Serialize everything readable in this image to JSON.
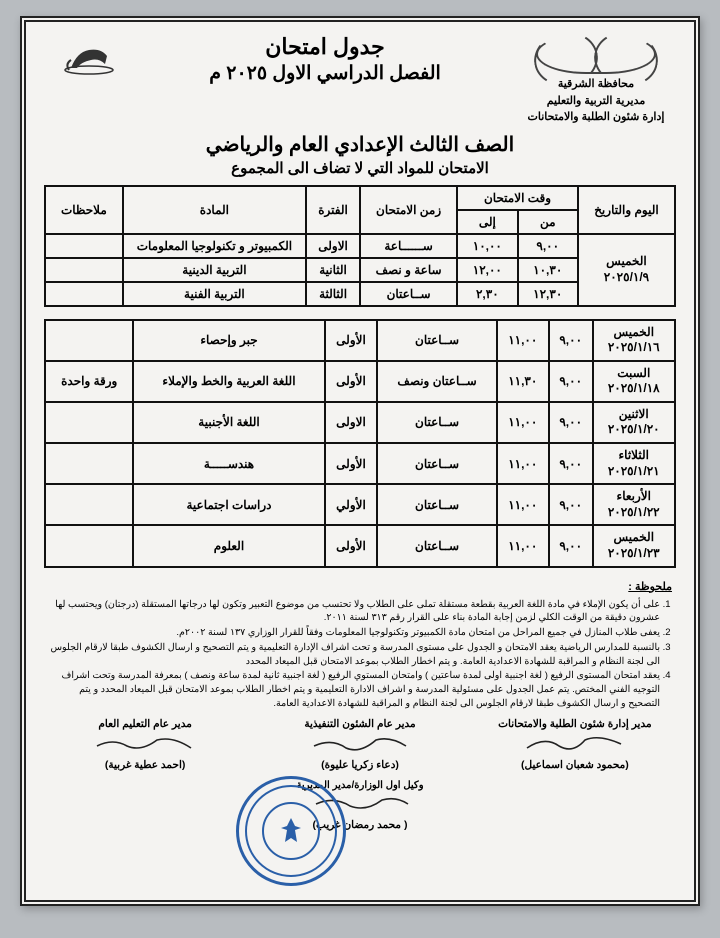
{
  "governorate": "محافظة الشرقية",
  "directorate": "مديرية التربية والتعليم",
  "department": "إدارة شئون الطلبة والامتحانات",
  "main_title": "جدول امتحان",
  "semester_line": "الفصل الدراسي الاول ٢٠٢٥ م",
  "grade_title": "الصف الثالث الإعدادي العام والرياضي",
  "sub_title": "الامتحان للمواد التي لا تضاف الى المجموع",
  "columns": {
    "day": "اليوم والتاريخ",
    "time_group": "وقت الامتحان",
    "from": "من",
    "to": "إلى",
    "duration": "زمن الامتحان",
    "period": "الفترة",
    "subject": "المادة",
    "notes": "ملاحظات"
  },
  "table1_day": "الخميس\n٢٠٢٥/١/٩",
  "table1": [
    {
      "from": "٩,٠٠",
      "to": "١٠,٠٠",
      "dur": "ســــــاعة",
      "per": "الاولى",
      "subj": "الكمبيوتر و تكنولوجيا المعلومات",
      "notes": ""
    },
    {
      "from": "١٠,٣٠",
      "to": "١٢,٠٠",
      "dur": "ساعة و نصف",
      "per": "الثانية",
      "subj": "التربية الدينية",
      "notes": ""
    },
    {
      "from": "١٢,٣٠",
      "to": "٢,٣٠",
      "dur": "ســاعتان",
      "per": "الثالثة",
      "subj": "التربية الفنية",
      "notes": ""
    }
  ],
  "table2": [
    {
      "day": "الخميس\n٢٠٢٥/١/١٦",
      "from": "٩,٠٠",
      "to": "١١,٠٠",
      "dur": "ســاعتان",
      "per": "الأولى",
      "subj": "جبر وإحصاء",
      "notes": ""
    },
    {
      "day": "السبت\n٢٠٢٥/١/١٨",
      "from": "٩,٠٠",
      "to": "١١,٣٠",
      "dur": "ســاعتان ونصف",
      "per": "الأولى",
      "subj": "اللغة العربية والخط والإملاء",
      "notes": "ورقة واحدة"
    },
    {
      "day": "الاثنين\n٢٠٢٥/١/٢٠",
      "from": "٩,٠٠",
      "to": "١١,٠٠",
      "dur": "ســاعتان",
      "per": "الاولى",
      "subj": "اللغة الأجنبية",
      "notes": ""
    },
    {
      "day": "الثلاثاء\n٢٠٢٥/١/٢١",
      "from": "٩,٠٠",
      "to": "١١,٠٠",
      "dur": "ســاعتان",
      "per": "الأولى",
      "subj": "هندســـــة",
      "notes": ""
    },
    {
      "day": "الأربعاء\n٢٠٢٥/١/٢٢",
      "from": "٩,٠٠",
      "to": "١١,٠٠",
      "dur": "ســاعتان",
      "per": "الأولي",
      "subj": "دراسات اجتماعية",
      "notes": ""
    },
    {
      "day": "الخميس\n٢٠٢٥/١/٢٣",
      "from": "٩,٠٠",
      "to": "١١,٠٠",
      "dur": "ســاعتان",
      "per": "الأولى",
      "subj": "العلوم",
      "notes": ""
    }
  ],
  "footnote_title": "ملحوظة :",
  "footnotes": [
    "على أن يكون الإملاء في مادة اللغة العربية بقطعة مستقلة تملى على الطلاب ولا تحتسب من موضوع التعبير وتكون لها درجاتها المستقلة (درجتان) ويحتسب لها عشرون دقيقة من الوقت الكلي لزمن إجابة المادة بناء على القرار رقم ٣١٣ لسنة ٢٠١١.",
    "يعفى طلاب المنازل في جميع المراحل من امتحان مادة الكمبيوتر وتكنولوجيا المعلومات وفقاً للقرار الوزاري ١٣٧ لسنة ٢٠٠٢م.",
    "بالنسبة للمدارس الرياضية يعقد الامتحان و الجدول على مستوى المدرسة و تحت اشراف الإدارة التعليمية و يتم التصحيح و ارسال الكشوف طبقا لارقام الجلوس الى لجنة النظام و المراقبة للشهادة الاعدادية العامة. و يتم اخطار الطلاب بموعد الامتحان قبل الميعاد المحدد ",
    "يعقد امتحان المستوى الرفيع ( لغة اجنبية اولى لمدة ساعتين ) وامتحان المستوي الرفيع ( لغة اجنبية ثانية لمدة ساعة ونصف ) بمعرفة المدرسة وتحت اشراف التوجيه الفني المختص. يتم عمل الجدول على مسئولية المدرسة و اشراف الادارة التعليمية و يتم اخطار الطلاب بموعد الامتحان قبل الميعاد المحدد و يتم التصحيح و ارسال الكشوف طبقا لارقام الجلوس الى لجنة النظام و المراقبة للشهادة الاعدادية العامة."
  ],
  "sig": {
    "right_title": "مدير إدارة شئون الطلبة والامتحانات",
    "right_name": "(محمود شعبان اسماعيل)",
    "center_title": "مدير عام الشئون التنفيذية",
    "center_name": "(دعاء زكريا عليوة)",
    "center_sub_title": "وكيل اول الوزارة/مدير المديرية",
    "center_sub_name": "( محمد رمضان غريب)",
    "left_title": "مدير عام التعليم العام",
    "left_name": "(احمد عطية غربية)"
  },
  "colors": {
    "border": "#111111",
    "paper": "#f4f3f1",
    "stamp": "#2a5fa8"
  }
}
